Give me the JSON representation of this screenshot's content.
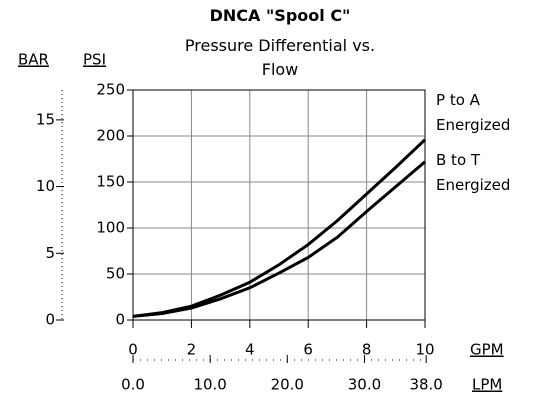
{
  "chart_data": {
    "type": "line",
    "title": "DNCA \"Spool C\"",
    "subtitle": "Pressure Differential vs. Flow",
    "x_label": "GPM",
    "x2_label": "LPM",
    "y_label": "PSI",
    "y2_label": "BAR",
    "x": [
      0,
      1,
      2,
      3,
      4,
      5,
      6,
      7,
      8,
      9,
      10
    ],
    "series": [
      {
        "name": "P to A Energized",
        "color": "#000000",
        "values": [
          4,
          8,
          15,
          27,
          41,
          60,
          82,
          108,
          137,
          166,
          196
        ]
      },
      {
        "name": "B to T Energized",
        "color": "#000000",
        "values": [
          4,
          7,
          13,
          23,
          35,
          51,
          68,
          90,
          118,
          145,
          172
        ]
      }
    ],
    "xlim": [
      0,
      10
    ],
    "xticks": [
      0,
      2,
      4,
      6,
      8,
      10
    ],
    "x2lim": [
      0,
      37.85
    ],
    "x2ticks": [
      {
        "value": 0,
        "label": "0.0"
      },
      {
        "value": 10,
        "label": "10.0"
      },
      {
        "value": 20,
        "label": "20.0"
      },
      {
        "value": 30,
        "label": "30.0"
      },
      {
        "value": 38,
        "label": "38.0"
      }
    ],
    "ylim": [
      0,
      250
    ],
    "yticks": [
      0,
      50,
      100,
      150,
      200,
      250
    ],
    "y2lim": [
      0,
      17.24
    ],
    "y2ticks": [
      0,
      5,
      10,
      15
    ],
    "grid": true
  }
}
